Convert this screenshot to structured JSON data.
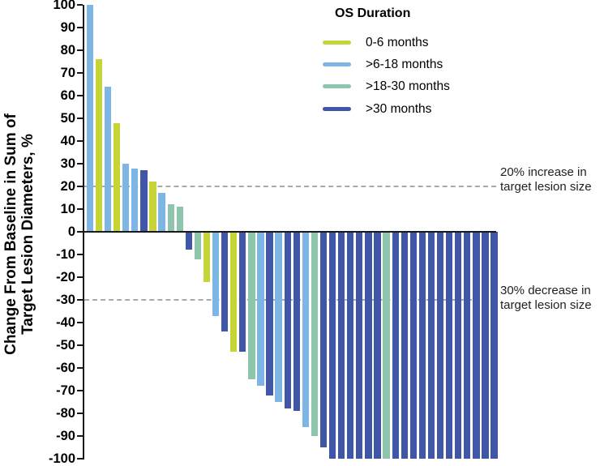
{
  "chart_data": {
    "type": "bar",
    "subtype": "waterfall",
    "title": "",
    "ylabel_lines": [
      "Change From Baseline in Sum of",
      "Target Lesion Diameters, %"
    ],
    "ylabel": "Change From Baseline in Sum of Target Lesion Diameters, %",
    "xlabel": "",
    "ylim": [
      -100,
      100
    ],
    "y_tick_step": 10,
    "y_tick_labels": [
      "100",
      "90",
      "80",
      "70",
      "60",
      "50",
      "40",
      "30",
      "20",
      "10",
      "0",
      "-10",
      "-20",
      "-30",
      "-40",
      "-50",
      "-60",
      "-70",
      "-80",
      "-90",
      "-100"
    ],
    "grid": false,
    "legend": {
      "title": "OS Duration",
      "position": "top-center",
      "items": [
        {
          "label": "0-6 months",
          "color": "#c6d435"
        },
        {
          "label": ">6-18 months",
          "color": "#7db6e4"
        },
        {
          "label": ">18-30 months",
          "color": "#8ec5ad"
        },
        {
          "label": ">30 months",
          "color": "#3f57a6"
        }
      ]
    },
    "reference_lines": [
      {
        "value": 20,
        "style": "dashed",
        "color": "#a9a9a9",
        "label_lines": [
          "20% increase in",
          "target lesion size"
        ]
      },
      {
        "value": -30,
        "style": "dashed",
        "color": "#a9a9a9",
        "label_lines": [
          "30% decrease in",
          "target lesion size"
        ]
      }
    ],
    "bars": [
      {
        "value": 100,
        "os_duration": ">6-18 months"
      },
      {
        "value": 76,
        "os_duration": "0-6 months"
      },
      {
        "value": 64,
        "os_duration": ">6-18 months"
      },
      {
        "value": 48,
        "os_duration": "0-6 months"
      },
      {
        "value": 30,
        "os_duration": ">6-18 months"
      },
      {
        "value": 28,
        "os_duration": ">6-18 months"
      },
      {
        "value": 27,
        "os_duration": ">30 months"
      },
      {
        "value": 22,
        "os_duration": "0-6 months"
      },
      {
        "value": 17,
        "os_duration": ">6-18 months"
      },
      {
        "value": 12,
        "os_duration": ">18-30 months"
      },
      {
        "value": 11,
        "os_duration": ">18-30 months"
      },
      {
        "value": -8,
        "os_duration": ">30 months"
      },
      {
        "value": -12,
        "os_duration": ">18-30 months"
      },
      {
        "value": -22,
        "os_duration": "0-6 months"
      },
      {
        "value": -37,
        "os_duration": ">6-18 months"
      },
      {
        "value": -44,
        "os_duration": ">30 months"
      },
      {
        "value": -53,
        "os_duration": "0-6 months"
      },
      {
        "value": -53,
        "os_duration": ">30 months"
      },
      {
        "value": -65,
        "os_duration": ">18-30 months"
      },
      {
        "value": -68,
        "os_duration": ">6-18 months"
      },
      {
        "value": -72,
        "os_duration": ">30 months"
      },
      {
        "value": -75,
        "os_duration": ">6-18 months"
      },
      {
        "value": -78,
        "os_duration": ">30 months"
      },
      {
        "value": -79,
        "os_duration": ">30 months"
      },
      {
        "value": -86,
        "os_duration": ">6-18 months"
      },
      {
        "value": -90,
        "os_duration": ">18-30 months"
      },
      {
        "value": -95,
        "os_duration": ">30 months"
      },
      {
        "value": -100,
        "os_duration": ">30 months"
      },
      {
        "value": -100,
        "os_duration": ">30 months"
      },
      {
        "value": -100,
        "os_duration": ">30 months"
      },
      {
        "value": -100,
        "os_duration": ">30 months"
      },
      {
        "value": -100,
        "os_duration": ">30 months"
      },
      {
        "value": -100,
        "os_duration": ">30 months"
      },
      {
        "value": -100,
        "os_duration": ">18-30 months"
      },
      {
        "value": -100,
        "os_duration": ">30 months"
      },
      {
        "value": -100,
        "os_duration": ">30 months"
      },
      {
        "value": -100,
        "os_duration": ">30 months"
      },
      {
        "value": -100,
        "os_duration": ">30 months"
      },
      {
        "value": -100,
        "os_duration": ">30 months"
      },
      {
        "value": -100,
        "os_duration": ">30 months"
      },
      {
        "value": -100,
        "os_duration": ">30 months"
      },
      {
        "value": -100,
        "os_duration": ">30 months"
      },
      {
        "value": -100,
        "os_duration": ">30 months"
      },
      {
        "value": -100,
        "os_duration": ">30 months"
      },
      {
        "value": -100,
        "os_duration": ">30 months"
      },
      {
        "value": -100,
        "os_duration": ">30 months"
      }
    ]
  }
}
